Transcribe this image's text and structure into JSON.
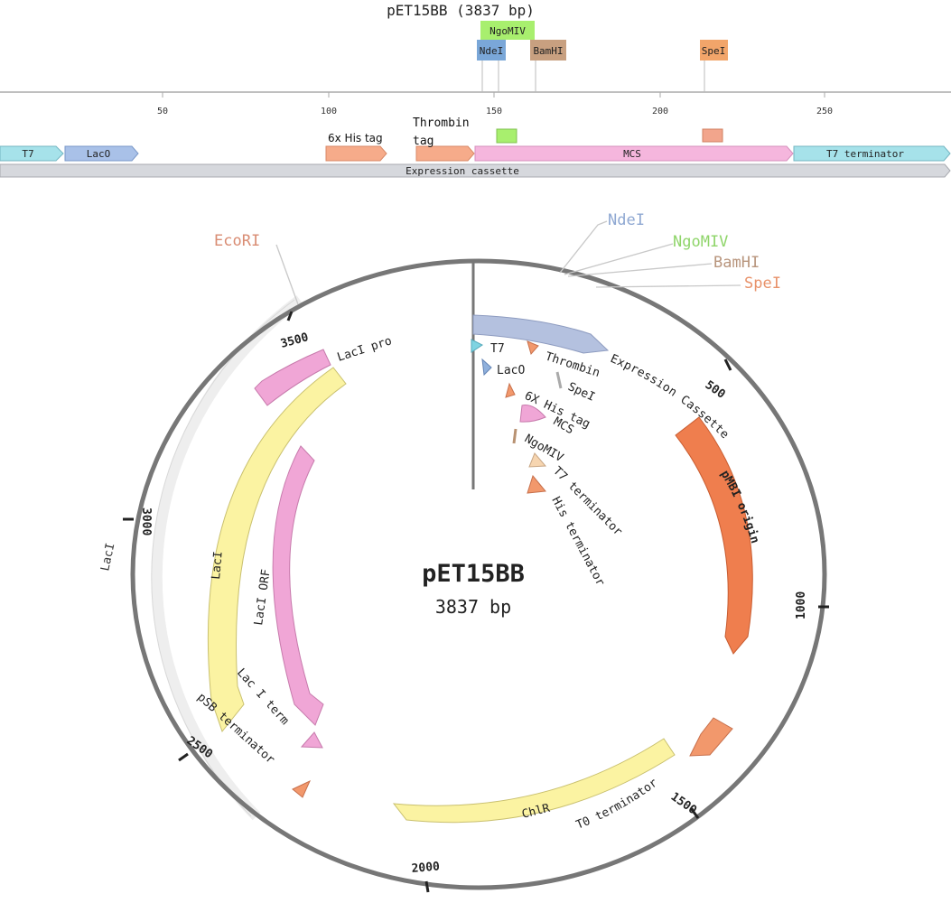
{
  "linear_map": {
    "title": "pET15BB (3837 bp)",
    "ruler_ticks": [
      "50",
      "100",
      "150",
      "200",
      "250"
    ],
    "sites": [
      "NgoMIV",
      "NdeI",
      "BamHI",
      "SpeI"
    ],
    "features": [
      "T7",
      "LacO",
      "6x His tag",
      "Thrombin",
      "tag",
      "MCS",
      "T7 terminator"
    ],
    "cassette_label": "Expression cassette",
    "colors": {
      "ngomiv": "#a8ef6e",
      "ndei": "#7aa7d8",
      "bamhi": "#c8a080",
      "spei": "#f2a56a",
      "t7": "#a6e2ea",
      "laco": "#a9c1e8",
      "orange": "#f6ab8a",
      "mcs": "#f5b6dd",
      "cassette": "#d6d8dd"
    }
  },
  "circular_map": {
    "name": "pET15BB",
    "size": "3837 bp",
    "position_labels": [
      "500",
      "1000",
      "1500",
      "2000",
      "2500",
      "3000",
      "3500"
    ],
    "sites": [
      {
        "name": "NdeI",
        "color": "#8fa8d2"
      },
      {
        "name": "NgoMIV",
        "color": "#8fd56a"
      },
      {
        "name": "BamHI",
        "color": "#b8957d"
      },
      {
        "name": "SpeI",
        "color": "#e8926a"
      },
      {
        "name": "EcoRI",
        "color": "#d98c73"
      }
    ],
    "features": [
      "Expression Cassette",
      "T7",
      "Thrombin",
      "LacO",
      "SpeI",
      "6X His tag",
      "MCS",
      "NgoMIV",
      "T7 terminator",
      "His terminator",
      "pMBI origin",
      "T0 terminator",
      "ChlR",
      "LacI",
      "LacI ORF",
      "LacI pro",
      "Lac I term",
      "pSB terminator"
    ],
    "colors": {
      "backbone": "#777777",
      "cassette": "#b4c1df",
      "origin": "#ef7e4e",
      "yellow": "#fbf3a2",
      "pink": "#f0a6d6",
      "orange": "#f2986c",
      "lacI_band": "#eeeeee"
    }
  }
}
